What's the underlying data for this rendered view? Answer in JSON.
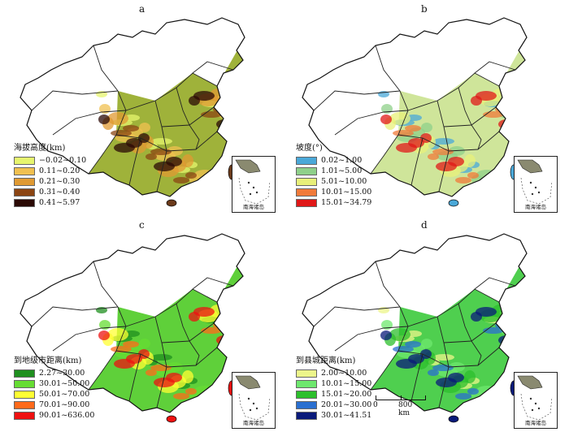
{
  "panels": [
    {
      "letter": "a",
      "legend_title": "海拔高度(km)",
      "legend": [
        {
          "label": "−0.02~0.10",
          "color": "#e6f56e"
        },
        {
          "label": "0.11~0.20",
          "color": "#f0c050"
        },
        {
          "label": "0.21~0.30",
          "color": "#e09a33"
        },
        {
          "label": "0.31~0.40",
          "color": "#8b4513"
        },
        {
          "label": "0.41~5.97",
          "color": "#2b0a05"
        }
      ],
      "fill": "#9fb23a",
      "accent": "#6b3a1a"
    },
    {
      "letter": "b",
      "legend_title": "坡度(°)",
      "legend": [
        {
          "label": "0.02~1.00",
          "color": "#4aa8d8"
        },
        {
          "label": "1.01~5.00",
          "color": "#8fd08a"
        },
        {
          "label": "5.01~10.00",
          "color": "#e8f07a"
        },
        {
          "label": "10.01~15.00",
          "color": "#f07a3a"
        },
        {
          "label": "15.01~34.79",
          "color": "#e01818"
        }
      ],
      "fill": "#cfe59a",
      "accent": "#4aa8d8"
    },
    {
      "letter": "c",
      "legend_title": "到地级市距离(km)",
      "legend": [
        {
          "label": "2.27~30.00",
          "color": "#1f8f1f"
        },
        {
          "label": "30.01~50.00",
          "color": "#66dd33"
        },
        {
          "label": "50.01~70.00",
          "color": "#ffff33"
        },
        {
          "label": "70.01~90.00",
          "color": "#ff6a1a"
        },
        {
          "label": "90.01~636.00",
          "color": "#ee1111"
        }
      ],
      "fill": "#5fd03a",
      "accent": "#ee1111"
    },
    {
      "letter": "d",
      "legend_title": "到县城距离(km)",
      "legend": [
        {
          "label": "2.00~10.00",
          "color": "#ecf58a"
        },
        {
          "label": "10.01~15.00",
          "color": "#6ee86e"
        },
        {
          "label": "15.01~20.00",
          "color": "#2cbf2c"
        },
        {
          "label": "20.01~30.00",
          "color": "#2a6fd0"
        },
        {
          "label": "30.01~41.51",
          "color": "#0a1a7a"
        }
      ],
      "fill": "#4fcf4f",
      "accent": "#0a1a7a"
    }
  ],
  "inset_label": "南海诸岛",
  "scalebar": {
    "left_label": "0",
    "right_label": "800 km"
  }
}
